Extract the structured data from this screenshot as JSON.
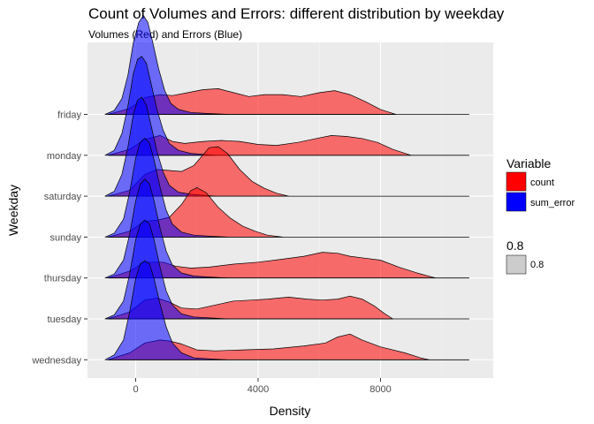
{
  "chart_data": {
    "type": "ridgeline",
    "title": "Count of Volumes and Errors: different distribution by weekday",
    "subtitle": "Volumes (Red) and Errors (Blue)",
    "xlabel": "Density",
    "ylabel": "Weekday",
    "xlim": [
      -1600,
      11200
    ],
    "x_ticks": [
      0,
      4000,
      8000
    ],
    "x_tick_labels": [
      "0",
      "4000",
      "8000"
    ],
    "grid": true,
    "legend_position": "right",
    "categories": [
      "wednesday",
      "tuesday",
      "thursday",
      "sunday",
      "saturday",
      "monday",
      "friday"
    ],
    "legend": {
      "fill_title": "Variable",
      "fill_items": [
        {
          "label": "count",
          "color": "#ff0000"
        },
        {
          "label": "sum_error",
          "color": "#0000ff"
        }
      ],
      "alpha_title": "0.8",
      "alpha_items": [
        {
          "label": "0.8",
          "color": "#cccccc"
        }
      ]
    },
    "series": [
      {
        "name": "count",
        "color": "#ff0000",
        "ridges": {
          "wednesday": {
            "min": -900,
            "max": 9600,
            "x": [
              -900,
              -200,
              300,
              800,
              1100,
              1500,
              2000,
              2600,
              3500,
              4500,
              5500,
              6200,
              6600,
              7000,
              7400,
              8000,
              8800,
              9300,
              9600
            ],
            "y": [
              0,
              0.07,
              0.17,
              0.2,
              0.19,
              0.16,
              0.1,
              0.09,
              0.1,
              0.11,
              0.14,
              0.17,
              0.23,
              0.26,
              0.2,
              0.13,
              0.07,
              0.02,
              0
            ]
          },
          "tuesday": {
            "min": -900,
            "max": 8400,
            "x": [
              -900,
              -200,
              300,
              700,
              1100,
              1500,
              2000,
              2600,
              3200,
              3800,
              4300,
              5000,
              5600,
              6100,
              6600,
              7000,
              7400,
              7800,
              8100,
              8400
            ],
            "y": [
              0,
              0.07,
              0.19,
              0.21,
              0.17,
              0.11,
              0.1,
              0.14,
              0.18,
              0.19,
              0.2,
              0.22,
              0.2,
              0.19,
              0.2,
              0.23,
              0.2,
              0.13,
              0.06,
              0
            ]
          },
          "thursday": {
            "min": -900,
            "max": 9800,
            "x": [
              -900,
              -200,
              300,
              900,
              1300,
              1800,
              2400,
              3200,
              4000,
              4800,
              5500,
              6100,
              6600,
              7000,
              7500,
              8000,
              8600,
              9200,
              9800
            ],
            "y": [
              0,
              0.07,
              0.16,
              0.16,
              0.12,
              0.1,
              0.11,
              0.14,
              0.16,
              0.19,
              0.22,
              0.26,
              0.25,
              0.22,
              0.2,
              0.18,
              0.11,
              0.05,
              0
            ]
          },
          "sunday": {
            "min": -900,
            "max": 4800,
            "x": [
              -900,
              -200,
              300,
              700,
              1100,
              1500,
              1800,
              2000,
              2300,
              2700,
              3100,
              3500,
              3900,
              4300,
              4800
            ],
            "y": [
              0,
              0.06,
              0.16,
              0.17,
              0.2,
              0.33,
              0.47,
              0.5,
              0.45,
              0.3,
              0.19,
              0.11,
              0.06,
              0.02,
              0
            ]
          },
          "saturday": {
            "min": -900,
            "max": 5000,
            "x": [
              -900,
              -200,
              300,
              700,
              1100,
              1500,
              1900,
              2400,
              2700,
              3000,
              3400,
              3800,
              4200,
              4600,
              5000
            ],
            "y": [
              0,
              0.06,
              0.22,
              0.27,
              0.26,
              0.25,
              0.31,
              0.49,
              0.5,
              0.43,
              0.27,
              0.15,
              0.08,
              0.03,
              0
            ]
          },
          "monday": {
            "min": -900,
            "max": 9000,
            "x": [
              -900,
              -200,
              300,
              800,
              1200,
              1600,
              2200,
              2800,
              3400,
              4000,
              4600,
              5300,
              5900,
              6400,
              6900,
              7400,
              7900,
              8400,
              9000
            ],
            "y": [
              0,
              0.06,
              0.16,
              0.2,
              0.14,
              0.12,
              0.14,
              0.15,
              0.14,
              0.11,
              0.1,
              0.13,
              0.17,
              0.2,
              0.19,
              0.17,
              0.13,
              0.06,
              0
            ]
          },
          "friday": {
            "min": -900,
            "max": 8500,
            "x": [
              -900,
              -200,
              300,
              800,
              1200,
              1700,
              2200,
              2700,
              3200,
              3700,
              4200,
              4800,
              5400,
              6000,
              6500,
              7000,
              7500,
              8000,
              8500
            ],
            "y": [
              0,
              0.06,
              0.17,
              0.2,
              0.19,
              0.22,
              0.25,
              0.26,
              0.22,
              0.18,
              0.2,
              0.2,
              0.18,
              0.22,
              0.24,
              0.2,
              0.13,
              0.05,
              0
            ]
          }
        }
      },
      {
        "name": "sum_error",
        "color": "#0000ff",
        "ridges": {
          "wednesday": {
            "min": -1000,
            "max": 3000,
            "x": [
              -1000,
              -700,
              -400,
              -200,
              0,
              150,
              300,
              450,
              600,
              800,
              1000,
              1200,
              1500,
              1900,
              2400,
              3000
            ],
            "y": [
              0,
              0.05,
              0.2,
              0.48,
              0.82,
              0.97,
              1.0,
              0.97,
              0.82,
              0.56,
              0.33,
              0.17,
              0.07,
              0.02,
              0.01,
              0
            ]
          },
          "tuesday": {
            "min": -1000,
            "max": 3000,
            "x": [
              -1000,
              -700,
              -400,
              -200,
              0,
              150,
              300,
              450,
              600,
              800,
              1000,
              1200,
              1500,
              1900,
              2400,
              3000
            ],
            "y": [
              0,
              0.04,
              0.18,
              0.45,
              0.8,
              0.96,
              1.0,
              0.96,
              0.8,
              0.52,
              0.28,
              0.14,
              0.05,
              0.02,
              0.01,
              0
            ]
          },
          "thursday": {
            "min": -1000,
            "max": 3000,
            "x": [
              -1000,
              -700,
              -400,
              -200,
              0,
              150,
              300,
              450,
              600,
              800,
              1000,
              1200,
              1500,
              1900,
              2400,
              3000
            ],
            "y": [
              0,
              0.04,
              0.18,
              0.44,
              0.78,
              0.95,
              1.0,
              0.95,
              0.78,
              0.5,
              0.27,
              0.13,
              0.05,
              0.02,
              0.01,
              0
            ]
          },
          "sunday": {
            "min": -1000,
            "max": 3000,
            "x": [
              -1000,
              -700,
              -400,
              -200,
              0,
              150,
              300,
              450,
              600,
              800,
              1000,
              1200,
              1500,
              1900,
              2400,
              3000
            ],
            "y": [
              0,
              0.04,
              0.18,
              0.45,
              0.8,
              0.96,
              1.0,
              0.95,
              0.78,
              0.5,
              0.27,
              0.13,
              0.05,
              0.02,
              0.01,
              0
            ]
          },
          "saturday": {
            "min": -1000,
            "max": 2600,
            "x": [
              -1000,
              -700,
              -450,
              -250,
              -80,
              60,
              200,
              350,
              500,
              700,
              900,
              1100,
              1400,
              1800,
              2200,
              2600
            ],
            "y": [
              0,
              0.05,
              0.22,
              0.5,
              0.82,
              0.97,
              1.0,
              0.92,
              0.72,
              0.45,
              0.24,
              0.11,
              0.04,
              0.02,
              0.01,
              0
            ]
          },
          "monday": {
            "min": -1000,
            "max": 2600,
            "x": [
              -1000,
              -700,
              -450,
              -250,
              -80,
              60,
              200,
              350,
              500,
              700,
              900,
              1100,
              1400,
              1800,
              2200,
              2600
            ],
            "y": [
              0,
              0.05,
              0.22,
              0.5,
              0.82,
              0.97,
              1.0,
              0.93,
              0.73,
              0.46,
              0.25,
              0.12,
              0.05,
              0.02,
              0.01,
              0
            ]
          },
          "friday": {
            "min": -1000,
            "max": 3000,
            "x": [
              -1000,
              -700,
              -450,
              -250,
              -80,
              100,
              250,
              400,
              550,
              750,
              950,
              1150,
              1400,
              1800,
              2300,
              3000
            ],
            "y": [
              0,
              0.04,
              0.16,
              0.4,
              0.72,
              0.93,
              1.0,
              0.93,
              0.74,
              0.46,
              0.24,
              0.11,
              0.05,
              0.02,
              0.01,
              0
            ]
          }
        }
      }
    ]
  }
}
